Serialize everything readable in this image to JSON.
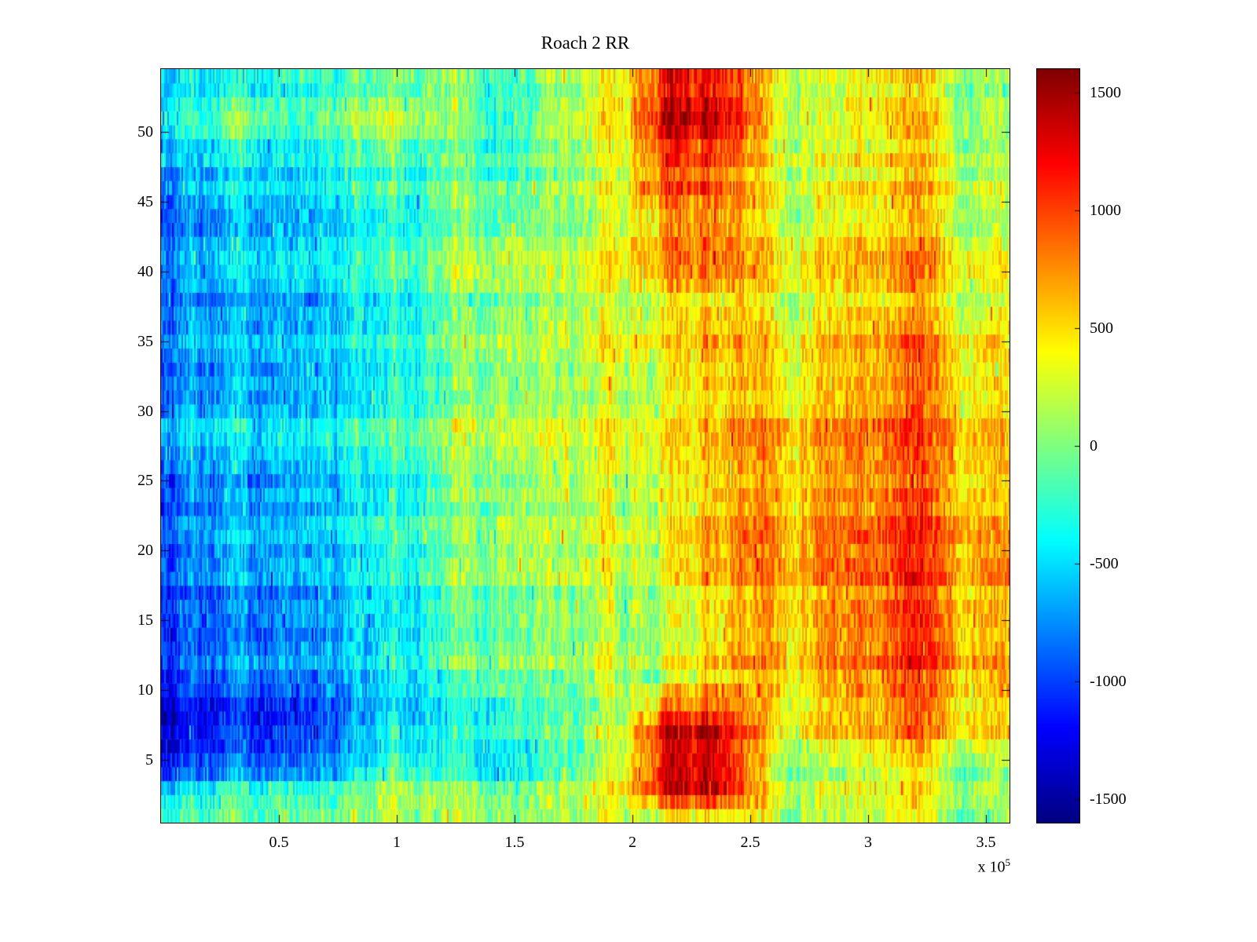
{
  "chart_data": {
    "type": "heatmap",
    "title": "Roach 2 RR",
    "colormap": "jet",
    "xlabel": "",
    "ylabel": "",
    "x_range": [
      0,
      360000
    ],
    "y_range": [
      0.5,
      54.5
    ],
    "clim": [
      -1600,
      1600
    ],
    "x_axis_exponent_label": {
      "prefix": "x 10",
      "exponent": "5"
    },
    "x_ticks": [
      {
        "value": 50000,
        "label": "0.5"
      },
      {
        "value": 100000,
        "label": "1"
      },
      {
        "value": 150000,
        "label": "1.5"
      },
      {
        "value": 200000,
        "label": "2"
      },
      {
        "value": 250000,
        "label": "2.5"
      },
      {
        "value": 300000,
        "label": "3"
      },
      {
        "value": 350000,
        "label": "3.5"
      }
    ],
    "y_ticks": [
      {
        "value": 5,
        "label": "5"
      },
      {
        "value": 10,
        "label": "10"
      },
      {
        "value": 15,
        "label": "15"
      },
      {
        "value": 20,
        "label": "20"
      },
      {
        "value": 25,
        "label": "25"
      },
      {
        "value": 30,
        "label": "30"
      },
      {
        "value": 35,
        "label": "35"
      },
      {
        "value": 40,
        "label": "40"
      },
      {
        "value": 45,
        "label": "45"
      },
      {
        "value": 50,
        "label": "50"
      }
    ],
    "colorbar_ticks": [
      {
        "value": 1500,
        "label": "1500"
      },
      {
        "value": 1000,
        "label": "1000"
      },
      {
        "value": 500,
        "label": "500"
      },
      {
        "value": 0,
        "label": "0"
      },
      {
        "value": -500,
        "label": "-500"
      },
      {
        "value": -1000,
        "label": "-1000"
      },
      {
        "value": -1500,
        "label": "-1500"
      }
    ],
    "grid": {
      "x_bin_centers": [
        11250,
        33750,
        56250,
        78750,
        101250,
        123750,
        146250,
        168750,
        191250,
        213750,
        236250,
        258750,
        281250,
        303750,
        326250,
        348750
      ],
      "row_centers": [
        53.5,
        51,
        48,
        45,
        41.5,
        37.5,
        33,
        29,
        25,
        20,
        15,
        11,
        7.5,
        3.5,
        1
      ],
      "values": [
        [
          -600,
          -500,
          -300,
          -200,
          0,
          -100,
          -300,
          100,
          300,
          1200,
          1000,
          400,
          300,
          400,
          400,
          300
        ],
        [
          -400,
          0,
          -200,
          100,
          300,
          0,
          -400,
          200,
          400,
          1500,
          1300,
          500,
          300,
          500,
          500,
          400
        ],
        [
          -700,
          -500,
          -400,
          -200,
          -100,
          -200,
          -300,
          100,
          300,
          1100,
          900,
          400,
          400,
          500,
          500,
          400
        ],
        [
          -800,
          -600,
          -500,
          -300,
          -200,
          -100,
          -100,
          100,
          300,
          900,
          800,
          400,
          400,
          500,
          600,
          500
        ],
        [
          -900,
          -700,
          -500,
          -400,
          -200,
          -100,
          0,
          100,
          300,
          800,
          700,
          400,
          500,
          600,
          600,
          500
        ],
        [
          -800,
          -700,
          -600,
          -400,
          -300,
          -100,
          0,
          200,
          300,
          500,
          500,
          400,
          500,
          600,
          600,
          600
        ],
        [
          -900,
          -800,
          -600,
          -500,
          -300,
          -200,
          0,
          100,
          300,
          400,
          500,
          500,
          600,
          700,
          800,
          700
        ],
        [
          -700,
          -600,
          -500,
          -300,
          -200,
          0,
          100,
          200,
          300,
          400,
          500,
          600,
          700,
          800,
          800,
          800
        ],
        [
          -900,
          -800,
          -600,
          -400,
          -300,
          -100,
          0,
          200,
          300,
          400,
          500,
          700,
          800,
          800,
          900,
          800
        ],
        [
          -1000,
          -800,
          -700,
          -500,
          -300,
          -200,
          0,
          100,
          200,
          300,
          500,
          700,
          800,
          900,
          900,
          900
        ],
        [
          -1000,
          -900,
          -700,
          -500,
          -400,
          -200,
          -100,
          100,
          200,
          300,
          400,
          700,
          800,
          900,
          1000,
          900
        ],
        [
          -1100,
          -900,
          -800,
          -600,
          -400,
          -300,
          -100,
          0,
          200,
          200,
          400,
          600,
          700,
          800,
          900,
          900
        ],
        [
          -1400,
          -1200,
          -1100,
          -800,
          -400,
          -500,
          -400,
          -100,
          100,
          1300,
          1200,
          500,
          600,
          700,
          800,
          800
        ],
        [
          -800,
          -600,
          -500,
          -300,
          100,
          -200,
          -400,
          0,
          300,
          1500,
          1400,
          300,
          200,
          300,
          300,
          300
        ],
        [
          -300,
          -200,
          -100,
          0,
          100,
          0,
          -100,
          100,
          200,
          300,
          300,
          200,
          200,
          200,
          200,
          200
        ]
      ]
    }
  }
}
